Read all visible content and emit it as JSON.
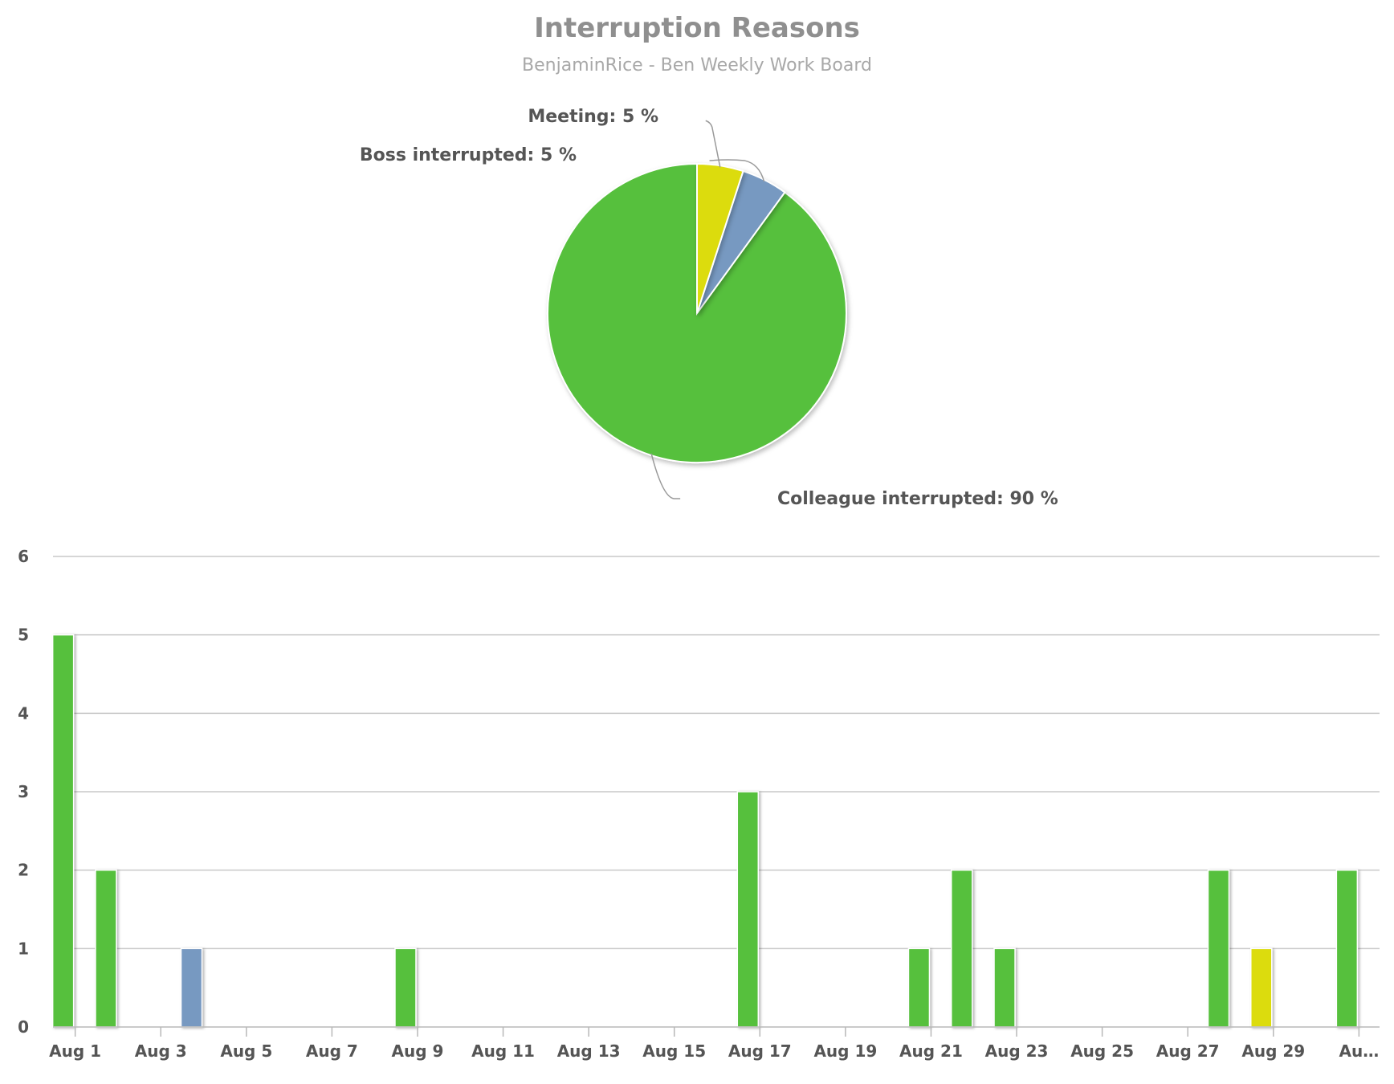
{
  "chart_data": [
    {
      "type": "pie",
      "title": "Interruption Reasons",
      "subtitle": "BenjaminRice - Ben Weekly Work Board",
      "slices": [
        {
          "label": "Colleague interrupted",
          "value": 90,
          "display": "Colleague interrupted: 90 %",
          "color": "#56c03c"
        },
        {
          "label": "Boss interrupted",
          "value": 5,
          "display": "Boss interrupted: 5 %",
          "color": "#7799c1"
        },
        {
          "label": "Meeting",
          "value": 5,
          "display": "Meeting: 5 %",
          "color": "#dcdc0a"
        }
      ]
    },
    {
      "type": "bar",
      "ylim": [
        0,
        6
      ],
      "yticks": [
        0,
        1,
        2,
        3,
        4,
        5,
        6
      ],
      "grid": true,
      "x_tick_labels": [
        "Aug 1",
        "Aug 3",
        "Aug 5",
        "Aug 7",
        "Aug 9",
        "Aug 11",
        "Aug 13",
        "Aug 15",
        "Aug 17",
        "Aug 19",
        "Aug 21",
        "Aug 23",
        "Aug 25",
        "Aug 27",
        "Aug 29",
        "Au…"
      ],
      "bars": [
        {
          "date": "Aug 1",
          "value": 5,
          "reason": "Colleague interrupted",
          "color": "#56c03c"
        },
        {
          "date": "Aug 2",
          "value": 2,
          "reason": "Colleague interrupted",
          "color": "#56c03c"
        },
        {
          "date": "Aug 4",
          "value": 1,
          "reason": "Boss interrupted",
          "color": "#7799c1"
        },
        {
          "date": "Aug 9",
          "value": 1,
          "reason": "Colleague interrupted",
          "color": "#56c03c"
        },
        {
          "date": "Aug 17",
          "value": 3,
          "reason": "Colleague interrupted",
          "color": "#56c03c"
        },
        {
          "date": "Aug 21",
          "value": 1,
          "reason": "Colleague interrupted",
          "color": "#56c03c"
        },
        {
          "date": "Aug 22",
          "value": 2,
          "reason": "Colleague interrupted",
          "color": "#56c03c"
        },
        {
          "date": "Aug 23",
          "value": 1,
          "reason": "Colleague interrupted",
          "color": "#56c03c"
        },
        {
          "date": "Aug 28",
          "value": 2,
          "reason": "Colleague interrupted",
          "color": "#56c03c"
        },
        {
          "date": "Aug 29",
          "value": 1,
          "reason": "Meeting",
          "color": "#dcdc0a"
        },
        {
          "date": "Aug 31",
          "value": 2,
          "reason": "Colleague interrupted",
          "color": "#56c03c"
        }
      ]
    }
  ]
}
